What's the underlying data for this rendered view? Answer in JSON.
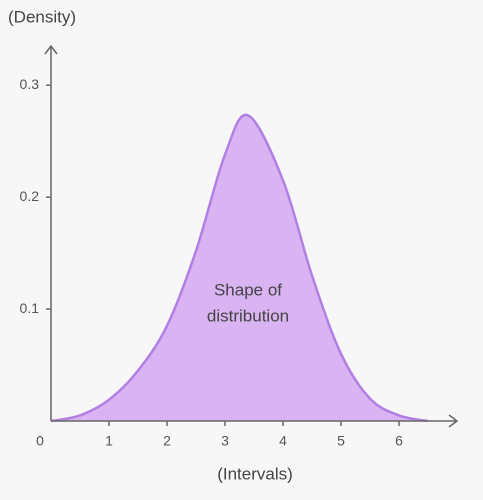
{
  "chart_data": {
    "type": "area",
    "y_label": "(Density)",
    "x_label": "(Intervals)",
    "annotation": [
      "Shape of",
      "distribution"
    ],
    "x": [
      0,
      0.5,
      1,
      1.5,
      2,
      2.5,
      3,
      3.4,
      4,
      4.5,
      5,
      5.5,
      6,
      6.5
    ],
    "values": [
      0,
      0.005,
      0.019,
      0.045,
      0.085,
      0.152,
      0.238,
      0.273,
      0.215,
      0.13,
      0.06,
      0.02,
      0.005,
      0
    ],
    "color": "#b27fe3",
    "fill": "#d9b3f2",
    "xlim": [
      0,
      7
    ],
    "ylim": [
      0,
      0.335
    ],
    "xticks": [
      0,
      1,
      2,
      3,
      4,
      5,
      6
    ],
    "yticks": [
      0.1,
      0.2,
      0.3
    ]
  }
}
